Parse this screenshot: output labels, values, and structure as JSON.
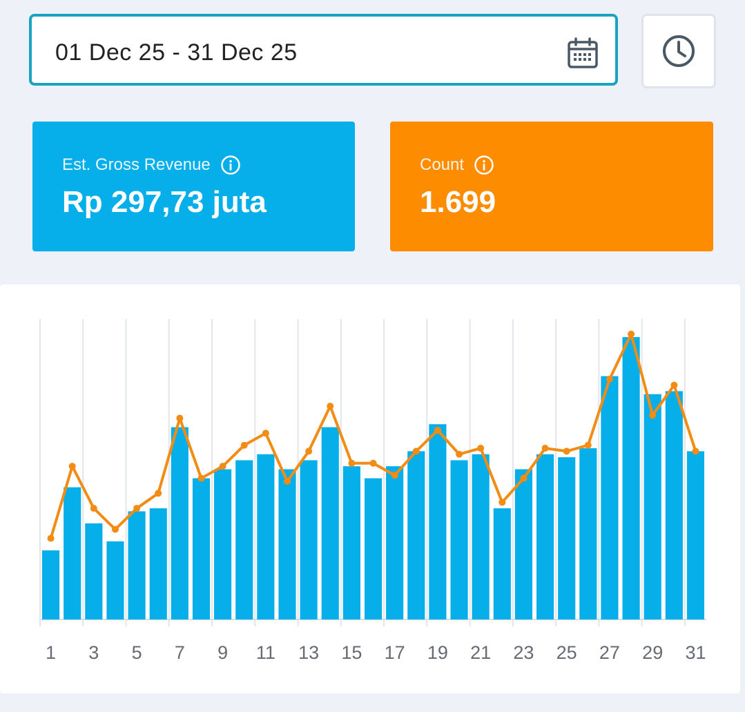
{
  "date_range": {
    "value": "01 Dec 25 - 31 Dec 25"
  },
  "icons": {
    "calendar": "calendar-icon",
    "clock": "clock-icon",
    "info": "info-icon"
  },
  "cards": {
    "revenue": {
      "label": "Est. Gross Revenue",
      "value": "Rp 297,73 juta",
      "color": "#06aeea"
    },
    "count": {
      "label": "Count",
      "value": "1.699",
      "color": "#fe8c00"
    }
  },
  "chart_data": {
    "type": "bar",
    "x": [
      1,
      2,
      3,
      4,
      5,
      6,
      7,
      8,
      9,
      10,
      11,
      12,
      13,
      14,
      15,
      16,
      17,
      18,
      19,
      20,
      21,
      22,
      23,
      24,
      25,
      26,
      27,
      28,
      29,
      30,
      31
    ],
    "x_tick_labels": [
      "1",
      "3",
      "5",
      "7",
      "9",
      "11",
      "13",
      "15",
      "17",
      "19",
      "21",
      "23",
      "25",
      "27",
      "29",
      "31"
    ],
    "series": [
      {
        "type": "bar",
        "color": "#06aeea",
        "values": [
          23,
          44,
          32,
          26,
          36,
          37,
          64,
          47,
          50,
          53,
          55,
          50,
          53,
          64,
          51,
          47,
          51,
          56,
          65,
          53,
          55,
          37,
          50,
          55,
          54,
          57,
          81,
          94,
          75,
          76,
          56
        ]
      },
      {
        "type": "line",
        "color": "#f28c14",
        "values": [
          27,
          51,
          37,
          30,
          37,
          42,
          67,
          47,
          51,
          58,
          62,
          46,
          56,
          71,
          52,
          52,
          48,
          56,
          63,
          55,
          57,
          39,
          47,
          57,
          56,
          58,
          80,
          95,
          68,
          78,
          56
        ]
      }
    ],
    "ylim": [
      0,
      100
    ],
    "grid": "vertical"
  }
}
